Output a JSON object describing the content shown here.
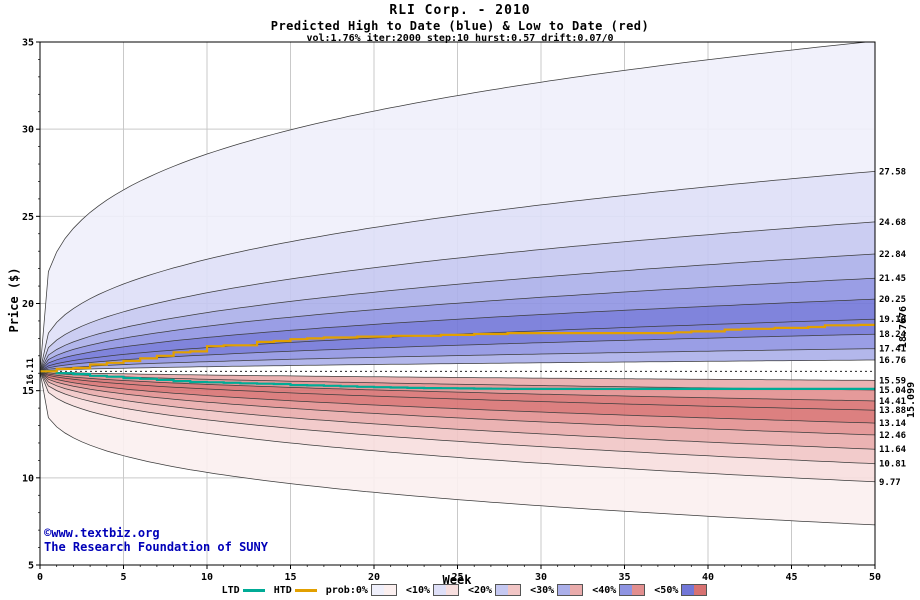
{
  "header": {
    "title": "RLI Corp. - 2010",
    "subtitle": "Predicted High to Date (blue) &  Low to Date (red)",
    "params": "vol:1.76% iter:2000 step:10 hurst:0.57 drift:0.07/0"
  },
  "watermark": {
    "line1": "©www.textbiz.org",
    "line2": "The Research Foundation of SUNY"
  },
  "legend": {
    "ltd_label": "LTD",
    "htd_label": "HTD",
    "items": [
      "prob:0%",
      "<10%",
      "<20%",
      "<30%",
      "<40%",
      "<50%"
    ]
  },
  "chart_data": {
    "type": "area",
    "title": "RLI Corp. - 2010",
    "subtitle": "Predicted High to Date (blue) & Low to Date (red)",
    "xlabel": "Week",
    "ylabel": "Price ($)",
    "xlim": [
      0,
      50
    ],
    "ylim": [
      5,
      35
    ],
    "xticks": [
      0,
      5,
      10,
      15,
      20,
      25,
      30,
      35,
      40,
      45,
      50
    ],
    "yticks": [
      5,
      10,
      15,
      20,
      25,
      30,
      35
    ],
    "grid": true,
    "start_price": 16.11,
    "start_label": "16.11",
    "htd_final": "18.7676",
    "ltd_final": "15.099",
    "high_boundaries": [
      35.05,
      27.58,
      24.68,
      22.84,
      21.45,
      20.25,
      19.1,
      18.24,
      17.41,
      16.76
    ],
    "low_boundaries": [
      15.59,
      15.04,
      14.41,
      13.88,
      13.14,
      12.46,
      11.64,
      10.81,
      9.77,
      7.3
    ],
    "right_labels": [
      "27.58",
      "24.68",
      "22.84",
      "21.45",
      "20.25",
      "19.10",
      "18.24",
      "17.41",
      "16.76",
      "15.59",
      "15.04",
      "14.41",
      "13.88",
      "13.14",
      "12.46",
      "11.64",
      "10.81",
      "9.77"
    ],
    "htd_series": [
      [
        0,
        16.11
      ],
      [
        1,
        16.25
      ],
      [
        2,
        16.3
      ],
      [
        3,
        16.5
      ],
      [
        4,
        16.6
      ],
      [
        5,
        16.7
      ],
      [
        6,
        16.85
      ],
      [
        7,
        17.0
      ],
      [
        8,
        17.2
      ],
      [
        9,
        17.25
      ],
      [
        10,
        17.55
      ],
      [
        11,
        17.6
      ],
      [
        12,
        17.6
      ],
      [
        13,
        17.8
      ],
      [
        14,
        17.85
      ],
      [
        15,
        17.95
      ],
      [
        16,
        18.0
      ],
      [
        17,
        18.05
      ],
      [
        18,
        18.05
      ],
      [
        19,
        18.1
      ],
      [
        20,
        18.1
      ],
      [
        21,
        18.15
      ],
      [
        22,
        18.15
      ],
      [
        23,
        18.15
      ],
      [
        24,
        18.2
      ],
      [
        25,
        18.2
      ],
      [
        26,
        18.25
      ],
      [
        27,
        18.25
      ],
      [
        28,
        18.3
      ],
      [
        29,
        18.3
      ],
      [
        30,
        18.3
      ],
      [
        32,
        18.3
      ],
      [
        34,
        18.3
      ],
      [
        36,
        18.3
      ],
      [
        38,
        18.35
      ],
      [
        39,
        18.4
      ],
      [
        40,
        18.4
      ],
      [
        41,
        18.5
      ],
      [
        42,
        18.55
      ],
      [
        43,
        18.55
      ],
      [
        44,
        18.6
      ],
      [
        45,
        18.6
      ],
      [
        46,
        18.65
      ],
      [
        47,
        18.75
      ],
      [
        48,
        18.75
      ],
      [
        49,
        18.77
      ],
      [
        50,
        18.7676
      ]
    ],
    "ltd_series": [
      [
        0,
        16.11
      ],
      [
        1,
        16.0
      ],
      [
        2,
        15.95
      ],
      [
        3,
        15.85
      ],
      [
        4,
        15.8
      ],
      [
        5,
        15.72
      ],
      [
        6,
        15.68
      ],
      [
        7,
        15.62
      ],
      [
        8,
        15.55
      ],
      [
        9,
        15.5
      ],
      [
        10,
        15.48
      ],
      [
        11,
        15.45
      ],
      [
        12,
        15.42
      ],
      [
        13,
        15.4
      ],
      [
        14,
        15.38
      ],
      [
        15,
        15.32
      ],
      [
        16,
        15.3
      ],
      [
        17,
        15.28
      ],
      [
        18,
        15.25
      ],
      [
        19,
        15.22
      ],
      [
        20,
        15.2
      ],
      [
        21,
        15.18
      ],
      [
        22,
        15.16
      ],
      [
        23,
        15.15
      ],
      [
        24,
        15.14
      ],
      [
        25,
        15.13
      ],
      [
        26,
        15.12
      ],
      [
        27,
        15.11
      ],
      [
        28,
        15.1
      ],
      [
        29,
        15.1
      ],
      [
        30,
        15.099
      ]
    ],
    "colors": {
      "htd": "#e2a000",
      "ltd": "#00ab96",
      "htd_final_label": "#b8860b",
      "ltd_final_label": "#009a3c",
      "grid": "#c9c9c9",
      "boundary": "#3c3c3c",
      "watermark": "#0000b8",
      "blue_levels": [
        "#efeffb",
        "#dedff7",
        "#c5c8f1",
        "#abafe9",
        "#8f94e2",
        "#7277d8"
      ],
      "red_levels": [
        "#fbefef",
        "#f7dede",
        "#f1c5c5",
        "#e9abab",
        "#e28f8f",
        "#d87272"
      ],
      "blue_bands": [
        "#efeffb",
        "#dedff7",
        "#c5c8f1",
        "#abafe9",
        "#8f94e2",
        "#7277d8",
        "#7277d8",
        "#8f94e2",
        "#abafe9"
      ],
      "red_bands": [
        "#e9abab",
        "#e28f8f",
        "#d87272",
        "#d87272",
        "#e28f8f",
        "#e9abab",
        "#f1c5c5",
        "#f7dede",
        "#fbefef"
      ]
    }
  }
}
